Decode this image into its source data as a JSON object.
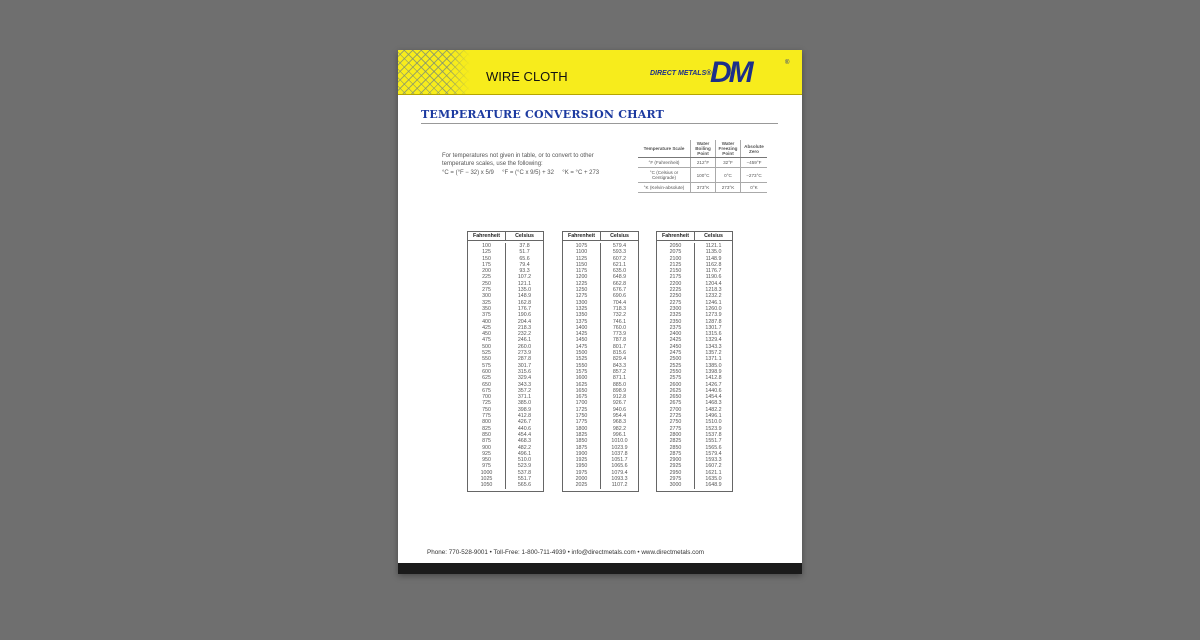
{
  "header": {
    "product": "WIRE CLOTH",
    "brand": "DIRECT METALS®",
    "logo": "DM",
    "reg": "®",
    "accent": "#f7ec1c",
    "brand_color": "#1c2f8a"
  },
  "title": "TEMPERATURE CONVERSION CHART",
  "intro": "For temperatures not given in table, or to convert to other temperature scales, use the following:",
  "formula": "°C = (°F − 32) x 5/9     °F = (°C x 9/5) + 32     °K = °C + 273",
  "scales": {
    "headers": [
      "Temperature Scale",
      "Water Boiling Point",
      "Water Freezing Point",
      "Absolute Zero"
    ],
    "rows": [
      [
        "°F (Fahrenheit)",
        "212°F",
        "32°F",
        "−459°F"
      ],
      [
        "°C (Celsius or Centigrade)",
        "100°C",
        "0°C",
        "−273°C"
      ],
      [
        "°K (Kelvin-absolute)",
        "373°K",
        "273°K",
        "0°K"
      ]
    ]
  },
  "tables": [
    {
      "headers": [
        "Fahrenheit",
        "Celsius"
      ],
      "rows": [
        [
          "100",
          "37.8"
        ],
        [
          "125",
          "51.7"
        ],
        [
          "150",
          "65.6"
        ],
        [
          "175",
          "79.4"
        ],
        [
          "200",
          "93.3"
        ],
        [
          "225",
          "107.2"
        ],
        [
          "250",
          "121.1"
        ],
        [
          "275",
          "135.0"
        ],
        [
          "300",
          "148.9"
        ],
        [
          "325",
          "162.8"
        ],
        [
          "350",
          "176.7"
        ],
        [
          "375",
          "190.6"
        ],
        [
          "400",
          "204.4"
        ],
        [
          "425",
          "218.3"
        ],
        [
          "450",
          "232.2"
        ],
        [
          "475",
          "246.1"
        ],
        [
          "500",
          "260.0"
        ],
        [
          "525",
          "273.9"
        ],
        [
          "550",
          "287.8"
        ],
        [
          "575",
          "301.7"
        ],
        [
          "600",
          "315.6"
        ],
        [
          "625",
          "329.4"
        ],
        [
          "650",
          "343.3"
        ],
        [
          "675",
          "357.2"
        ],
        [
          "700",
          "371.1"
        ],
        [
          "725",
          "385.0"
        ],
        [
          "750",
          "398.9"
        ],
        [
          "775",
          "412.8"
        ],
        [
          "800",
          "426.7"
        ],
        [
          "825",
          "440.6"
        ],
        [
          "850",
          "454.4"
        ],
        [
          "875",
          "468.3"
        ],
        [
          "900",
          "482.2"
        ],
        [
          "925",
          "496.1"
        ],
        [
          "950",
          "510.0"
        ],
        [
          "975",
          "523.9"
        ],
        [
          "1000",
          "537.8"
        ],
        [
          "1025",
          "551.7"
        ],
        [
          "1050",
          "565.6"
        ]
      ]
    },
    {
      "headers": [
        "Fahrenheit",
        "Celsius"
      ],
      "rows": [
        [
          "1075",
          "579.4"
        ],
        [
          "1100",
          "593.3"
        ],
        [
          "1125",
          "607.2"
        ],
        [
          "1150",
          "621.1"
        ],
        [
          "1175",
          "635.0"
        ],
        [
          "1200",
          "648.9"
        ],
        [
          "1225",
          "662.8"
        ],
        [
          "1250",
          "676.7"
        ],
        [
          "1275",
          "690.6"
        ],
        [
          "1300",
          "704.4"
        ],
        [
          "1325",
          "718.3"
        ],
        [
          "1350",
          "732.2"
        ],
        [
          "1375",
          "746.1"
        ],
        [
          "1400",
          "760.0"
        ],
        [
          "1425",
          "773.9"
        ],
        [
          "1450",
          "787.8"
        ],
        [
          "1475",
          "801.7"
        ],
        [
          "1500",
          "815.6"
        ],
        [
          "1525",
          "829.4"
        ],
        [
          "1550",
          "843.3"
        ],
        [
          "1575",
          "857.2"
        ],
        [
          "1600",
          "871.1"
        ],
        [
          "1625",
          "885.0"
        ],
        [
          "1650",
          "898.9"
        ],
        [
          "1675",
          "912.8"
        ],
        [
          "1700",
          "926.7"
        ],
        [
          "1725",
          "940.6"
        ],
        [
          "1750",
          "954.4"
        ],
        [
          "1775",
          "968.3"
        ],
        [
          "1800",
          "982.2"
        ],
        [
          "1825",
          "996.1"
        ],
        [
          "1850",
          "1010.0"
        ],
        [
          "1875",
          "1023.9"
        ],
        [
          "1900",
          "1037.8"
        ],
        [
          "1925",
          "1051.7"
        ],
        [
          "1950",
          "1065.6"
        ],
        [
          "1975",
          "1079.4"
        ],
        [
          "2000",
          "1093.3"
        ],
        [
          "2025",
          "1107.2"
        ]
      ]
    },
    {
      "headers": [
        "Fahrenheit",
        "Celsius"
      ],
      "rows": [
        [
          "2050",
          "1121.1"
        ],
        [
          "2075",
          "1135.0"
        ],
        [
          "2100",
          "1148.9"
        ],
        [
          "2125",
          "1162.8"
        ],
        [
          "2150",
          "1176.7"
        ],
        [
          "2175",
          "1190.6"
        ],
        [
          "2200",
          "1204.4"
        ],
        [
          "2225",
          "1218.3"
        ],
        [
          "2250",
          "1232.2"
        ],
        [
          "2275",
          "1246.1"
        ],
        [
          "2300",
          "1260.0"
        ],
        [
          "2325",
          "1273.9"
        ],
        [
          "2350",
          "1287.8"
        ],
        [
          "2375",
          "1301.7"
        ],
        [
          "2400",
          "1315.6"
        ],
        [
          "2425",
          "1329.4"
        ],
        [
          "2450",
          "1343.3"
        ],
        [
          "2475",
          "1357.2"
        ],
        [
          "2500",
          "1371.1"
        ],
        [
          "2525",
          "1385.0"
        ],
        [
          "2550",
          "1398.9"
        ],
        [
          "2575",
          "1412.8"
        ],
        [
          "2600",
          "1426.7"
        ],
        [
          "2625",
          "1440.6"
        ],
        [
          "2650",
          "1454.4"
        ],
        [
          "2675",
          "1468.3"
        ],
        [
          "2700",
          "1482.2"
        ],
        [
          "2725",
          "1496.1"
        ],
        [
          "2750",
          "1510.0"
        ],
        [
          "2775",
          "1523.9"
        ],
        [
          "2800",
          "1537.8"
        ],
        [
          "2825",
          "1551.7"
        ],
        [
          "2850",
          "1565.6"
        ],
        [
          "2875",
          "1579.4"
        ],
        [
          "2900",
          "1593.3"
        ],
        [
          "2925",
          "1607.2"
        ],
        [
          "2950",
          "1621.1"
        ],
        [
          "2975",
          "1635.0"
        ],
        [
          "3000",
          "1648.9"
        ]
      ]
    }
  ],
  "footer": "Phone: 770-528-9001 • Toll-Free: 1-800-711-4939 • info@directmetals.com • www.directmetals.com"
}
